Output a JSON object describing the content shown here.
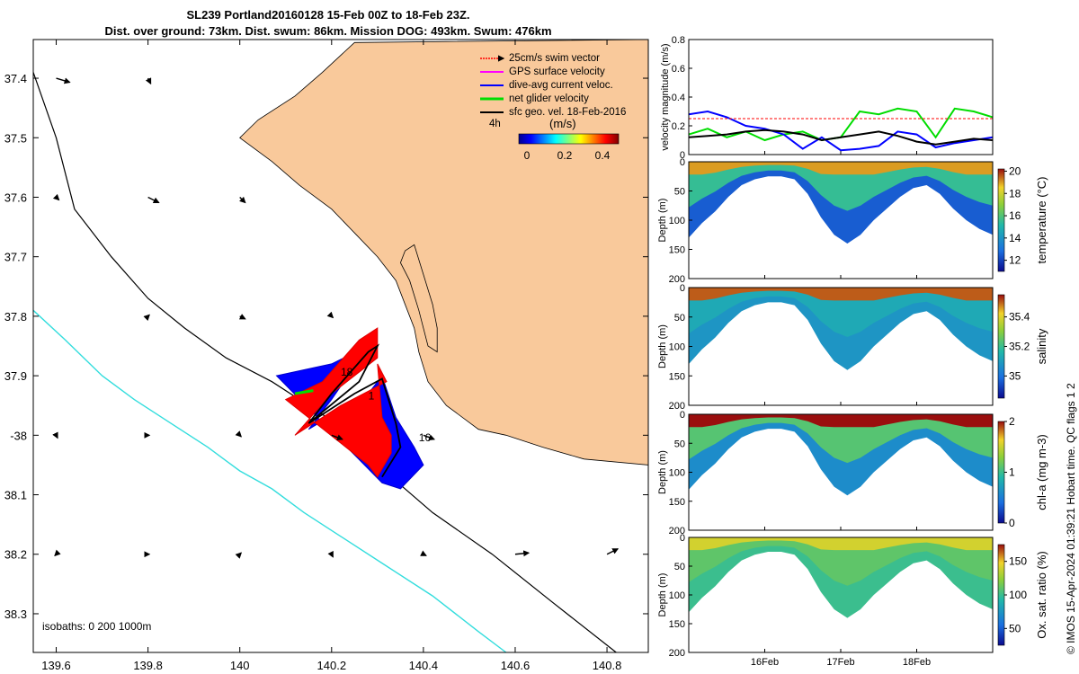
{
  "title": {
    "line1": "SL239 Portland20160128 15-Feb 00Z to 18-Feb 23Z.",
    "line2": "Dist. over ground: 73km. Dist. swum: 86km. Mission DOG: 493km. Swum: 476km"
  },
  "side_caption": "© IMOS 15-Apr-2024 01:39:21 Hobart time. QC flags 1  2",
  "colors": {
    "land": "#f9c99b",
    "swim_vector": "#ff0000",
    "gps_velocity": "#ff00ff",
    "dive_avg_current": "#0000ff",
    "net_glider_velocity": "#00dd00",
    "sfc_geo_vel": "#000000",
    "isobath_200": "#000000",
    "isobath_1000": "#33dddd"
  },
  "chart_data": [
    {
      "type": "map",
      "legend": {
        "items": [
          {
            "label": "25cm/s swim vector",
            "color": "#ff0000"
          },
          {
            "label": "GPS surface velocity",
            "color": "#ff00ff"
          },
          {
            "label": "dive-avg current veloc.",
            "color": "#0000ff"
          },
          {
            "label": "net glider velocity",
            "color": "#00dd00"
          },
          {
            "label": "sfc geo. vel. 18-Feb-2016",
            "color": "#000000"
          }
        ],
        "time_label": "4h",
        "colorbar_title": "(m/s)",
        "colorbar_ticks": [
          "0",
          "0.2",
          "0.4"
        ],
        "colorbar_range": [
          0,
          0.5
        ],
        "placement": "top-right"
      },
      "x_ticks": [
        {
          "value": 139.6,
          "label": "139.6"
        },
        {
          "value": 139.8,
          "label": "139.8"
        },
        {
          "value": 140.0,
          "label": "140"
        },
        {
          "value": 140.2,
          "label": "140.2"
        },
        {
          "value": 140.4,
          "label": "140.4"
        },
        {
          "value": 140.6,
          "label": "140.6"
        },
        {
          "value": 140.8,
          "label": "140.8"
        }
      ],
      "y_ticks": [
        {
          "value": -37.4,
          "label": "37.4"
        },
        {
          "value": -37.5,
          "label": "37.5"
        },
        {
          "value": -37.6,
          "label": "37.6"
        },
        {
          "value": -37.7,
          "label": "37.7"
        },
        {
          "value": -37.8,
          "label": "37.8"
        },
        {
          "value": -37.9,
          "label": "37.9"
        },
        {
          "value": -38.0,
          "label": "-38"
        },
        {
          "value": -38.1,
          "label": "38.1"
        },
        {
          "value": -38.2,
          "label": "38.2"
        },
        {
          "value": -38.3,
          "label": "38.3"
        }
      ],
      "xlim": [
        139.55,
        140.89
      ],
      "ylim": [
        -38.365,
        -37.335
      ],
      "isobath_label": "isobaths: 0   200  1000m",
      "coastline": [
        [
          140.25,
          -37.34
        ],
        [
          140.18,
          -37.39
        ],
        [
          140.12,
          -37.43
        ],
        [
          140.04,
          -37.47
        ],
        [
          140.0,
          -37.5
        ],
        [
          140.07,
          -37.54
        ],
        [
          140.13,
          -37.58
        ],
        [
          140.2,
          -37.62
        ],
        [
          140.25,
          -37.66
        ],
        [
          140.3,
          -37.7
        ],
        [
          140.34,
          -37.74
        ],
        [
          140.36,
          -37.78
        ],
        [
          140.38,
          -37.82
        ],
        [
          140.39,
          -37.86
        ],
        [
          140.41,
          -37.91
        ],
        [
          140.45,
          -37.95
        ],
        [
          140.52,
          -37.99
        ],
        [
          140.58,
          -38.0
        ],
        [
          140.66,
          -38.02
        ],
        [
          140.75,
          -38.04
        ],
        [
          140.89,
          -38.05
        ]
      ],
      "island": [
        [
          140.36,
          -37.69
        ],
        [
          140.38,
          -37.68
        ],
        [
          140.4,
          -37.73
        ],
        [
          140.42,
          -37.78
        ],
        [
          140.43,
          -37.82
        ],
        [
          140.43,
          -37.86
        ],
        [
          140.41,
          -37.85
        ],
        [
          140.39,
          -37.79
        ],
        [
          140.37,
          -37.74
        ],
        [
          140.35,
          -37.71
        ]
      ],
      "isobath_200": [
        [
          139.55,
          -37.39
        ],
        [
          139.6,
          -37.5
        ],
        [
          139.64,
          -37.62
        ],
        [
          139.72,
          -37.7
        ],
        [
          139.8,
          -37.77
        ],
        [
          139.88,
          -37.82
        ],
        [
          139.97,
          -37.87
        ],
        [
          140.07,
          -37.91
        ],
        [
          140.19,
          -37.97
        ],
        [
          140.3,
          -38.05
        ],
        [
          140.42,
          -38.13
        ],
        [
          140.55,
          -38.2
        ],
        [
          140.68,
          -38.28
        ],
        [
          140.82,
          -38.365
        ]
      ],
      "isobath_1000": [
        [
          139.55,
          -37.79
        ],
        [
          139.62,
          -37.84
        ],
        [
          139.7,
          -37.9
        ],
        [
          139.77,
          -37.94
        ],
        [
          139.85,
          -37.98
        ],
        [
          139.93,
          -38.02
        ],
        [
          140.0,
          -38.06
        ],
        [
          140.07,
          -38.09
        ],
        [
          140.14,
          -38.13
        ],
        [
          140.22,
          -38.17
        ],
        [
          140.32,
          -38.22
        ],
        [
          140.42,
          -38.27
        ],
        [
          140.52,
          -38.33
        ],
        [
          140.58,
          -38.365
        ]
      ],
      "glider_track": [
        [
          140.15,
          -37.98
        ],
        [
          140.2,
          -37.93
        ],
        [
          140.28,
          -37.86
        ],
        [
          140.3,
          -37.85
        ],
        [
          140.26,
          -37.91
        ],
        [
          140.15,
          -37.98
        ],
        [
          140.25,
          -37.93
        ],
        [
          140.31,
          -37.905
        ],
        [
          140.34,
          -37.98
        ],
        [
          140.35,
          -38.02
        ],
        [
          140.31,
          -38.07
        ]
      ],
      "dive_avg_region": [
        [
          140.08,
          -37.9
        ],
        [
          140.2,
          -37.88
        ],
        [
          140.28,
          -37.85
        ],
        [
          140.2,
          -37.94
        ],
        [
          140.15,
          -37.99
        ],
        [
          140.28,
          -37.93
        ],
        [
          140.31,
          -37.9
        ],
        [
          140.34,
          -37.97
        ],
        [
          140.38,
          -38.02
        ],
        [
          140.4,
          -38.05
        ],
        [
          140.35,
          -38.09
        ],
        [
          140.31,
          -38.08
        ]
      ],
      "swim_region": [
        [
          140.1,
          -37.94
        ],
        [
          140.18,
          -37.91
        ],
        [
          140.26,
          -37.84
        ],
        [
          140.3,
          -37.82
        ],
        [
          140.3,
          -37.87
        ],
        [
          140.2,
          -37.93
        ],
        [
          140.12,
          -38.0
        ],
        [
          140.22,
          -37.95
        ],
        [
          140.32,
          -37.91
        ],
        [
          140.3,
          -37.88
        ],
        [
          140.31,
          -37.97
        ],
        [
          140.33,
          -38.0
        ],
        [
          140.33,
          -38.03
        ],
        [
          140.3,
          -38.07
        ],
        [
          140.28,
          -38.05
        ]
      ],
      "time_labels": [
        {
          "text": "18",
          "lon": 140.22,
          "lat": -37.9
        },
        {
          "text": "1",
          "lon": 140.28,
          "lat": -37.94
        },
        {
          "text": "16",
          "lon": 140.39,
          "lat": -38.01
        }
      ],
      "sfc_vectors": [
        {
          "lon": 139.6,
          "lat": -37.4,
          "u": 0.05,
          "v": -0.015
        },
        {
          "lon": 139.8,
          "lat": -37.4,
          "u": 0.01,
          "v": -0.02
        },
        {
          "lon": 139.6,
          "lat": -37.6,
          "u": 0.01,
          "v": -0.01
        },
        {
          "lon": 139.8,
          "lat": -37.6,
          "u": 0.04,
          "v": -0.02
        },
        {
          "lon": 140.0,
          "lat": -37.6,
          "u": 0.02,
          "v": -0.02
        },
        {
          "lon": 140.0,
          "lat": -37.8,
          "u": 0.02,
          "v": -0.01
        },
        {
          "lon": 140.2,
          "lat": -37.8,
          "u": 0.005,
          "v": -0.005
        },
        {
          "lon": 139.8,
          "lat": -37.8,
          "u": 0.005,
          "v": 0.005
        },
        {
          "lon": 139.6,
          "lat": -38.0,
          "u": 0.005,
          "v": -0.01
        },
        {
          "lon": 139.8,
          "lat": -38.0,
          "u": 0.005,
          "v": 0.0
        },
        {
          "lon": 140.0,
          "lat": -38.0,
          "u": 0.005,
          "v": -0.005
        },
        {
          "lon": 140.2,
          "lat": -38.0,
          "u": 0.04,
          "v": -0.015
        },
        {
          "lon": 140.4,
          "lat": -38.0,
          "u": 0.04,
          "v": -0.015
        },
        {
          "lon": 139.6,
          "lat": -38.2,
          "u": -0.005,
          "v": -0.005
        },
        {
          "lon": 139.8,
          "lat": -38.2,
          "u": 0.005,
          "v": 0.0
        },
        {
          "lon": 140.0,
          "lat": -38.2,
          "u": 0.005,
          "v": 0.005
        },
        {
          "lon": 140.2,
          "lat": -38.2,
          "u": 0.005,
          "v": -0.01
        },
        {
          "lon": 140.4,
          "lat": -38.2,
          "u": 0.01,
          "v": -0.005
        },
        {
          "lon": 140.6,
          "lat": -38.2,
          "u": 0.05,
          "v": 0.005
        },
        {
          "lon": 140.8,
          "lat": -38.2,
          "u": 0.04,
          "v": 0.02
        }
      ]
    },
    {
      "type": "line",
      "ylabel": "velocity magnitude (m/s)",
      "ylim": [
        0,
        0.8
      ],
      "y_ticks": [
        "0",
        "0.2",
        "0.4",
        "0.6",
        "0.8"
      ],
      "x_days": [
        0,
        0.25,
        0.5,
        0.75,
        1,
        1.25,
        1.5,
        1.75,
        2,
        2.25,
        2.5,
        2.75,
        3,
        3.25,
        3.5,
        3.75,
        4
      ],
      "series": [
        {
          "color": "#00dd00",
          "values": [
            0.14,
            0.18,
            0.12,
            0.16,
            0.1,
            0.14,
            0.16,
            0.1,
            0.12,
            0.3,
            0.28,
            0.32,
            0.3,
            0.12,
            0.32,
            0.3,
            0.26
          ]
        },
        {
          "color": "#0000ff",
          "values": [
            0.28,
            0.3,
            0.26,
            0.2,
            0.18,
            0.14,
            0.04,
            0.12,
            0.03,
            0.04,
            0.06,
            0.16,
            0.14,
            0.05,
            0.08,
            0.1,
            0.12
          ]
        },
        {
          "color": "#000000",
          "values": [
            0.12,
            0.13,
            0.14,
            0.16,
            0.17,
            0.16,
            0.14,
            0.1,
            0.12,
            0.14,
            0.16,
            0.13,
            0.09,
            0.07,
            0.09,
            0.11,
            0.1
          ]
        },
        {
          "color": "#ff0000",
          "values": [
            0.25,
            0.25,
            0.25,
            0.25,
            0.25,
            0.25,
            0.25,
            0.25,
            0.25,
            0.25,
            0.25,
            0.25,
            0.25,
            0.25,
            0.25,
            0.25,
            0.25
          ]
        }
      ]
    },
    {
      "type": "heatmap",
      "variable": "temperature",
      "colorbar_label": "temperature (°C)",
      "clim": [
        11,
        20.2
      ],
      "colorbar_ticks": [
        12,
        14,
        16,
        18,
        20
      ],
      "ylabel": "Depth (m)",
      "ylim": [
        0,
        200
      ],
      "y_ticks": [
        "0",
        "50",
        "100",
        "150",
        "200"
      ],
      "depth_profile_m": [
        130,
        105,
        85,
        60,
        40,
        30,
        25,
        25,
        30,
        55,
        95,
        125,
        140,
        125,
        100,
        80,
        60,
        45,
        40,
        55,
        80,
        100,
        115,
        125
      ],
      "surface_value": 19,
      "mid_value": 15.5,
      "deep_value": 12.5
    },
    {
      "type": "heatmap",
      "variable": "salinity",
      "colorbar_label": "salinity",
      "clim": [
        34.85,
        35.55
      ],
      "colorbar_ticks": [
        35,
        35.2,
        35.4
      ],
      "ylabel": "Depth (m)",
      "ylim": [
        0,
        200
      ],
      "y_ticks": [
        "0",
        "50",
        "100",
        "150",
        "200"
      ],
      "depth_profile_m": [
        130,
        105,
        85,
        60,
        40,
        30,
        25,
        25,
        30,
        55,
        95,
        125,
        140,
        125,
        100,
        80,
        60,
        45,
        40,
        55,
        80,
        100,
        115,
        125
      ],
      "surface_value": 35.5,
      "mid_value": 35.13,
      "deep_value": 35.08
    },
    {
      "type": "heatmap",
      "variable": "chl-a",
      "colorbar_label": "chl-a (mg m-3)",
      "clim": [
        0,
        2
      ],
      "colorbar_ticks": [
        0,
        1,
        2
      ],
      "ylabel": "Depth (m)",
      "ylim": [
        0,
        200
      ],
      "y_ticks": [
        "0",
        "50",
        "100",
        "150",
        "200"
      ],
      "depth_profile_m": [
        130,
        105,
        85,
        60,
        40,
        30,
        25,
        25,
        30,
        55,
        95,
        125,
        140,
        125,
        100,
        80,
        60,
        45,
        40,
        55,
        80,
        100,
        115,
        125
      ],
      "surface_value": 2,
      "mid_value": 1.1,
      "deep_value": 0.6
    },
    {
      "type": "heatmap",
      "variable": "oxygen",
      "colorbar_label": "Ox. sat. ratio (%)",
      "clim": [
        25,
        175
      ],
      "colorbar_ticks": [
        50,
        100,
        150
      ],
      "ylabel": "Depth (m)",
      "ylim": [
        0,
        200
      ],
      "y_ticks": [
        "0",
        "50",
        "100",
        "150",
        "200"
      ],
      "depth_profile_m": [
        130,
        105,
        85,
        60,
        40,
        30,
        25,
        25,
        30,
        55,
        95,
        125,
        140,
        125,
        100,
        80,
        60,
        45,
        40,
        55,
        80,
        100,
        115,
        125
      ],
      "surface_value": 140,
      "mid_value": 110,
      "deep_value": 100
    }
  ],
  "time_axis": {
    "range_days": [
      0,
      4
    ],
    "ticks": [
      {
        "day": 1,
        "label": "16Feb"
      },
      {
        "day": 2,
        "label": "17Feb"
      },
      {
        "day": 3,
        "label": "18Feb"
      }
    ]
  }
}
